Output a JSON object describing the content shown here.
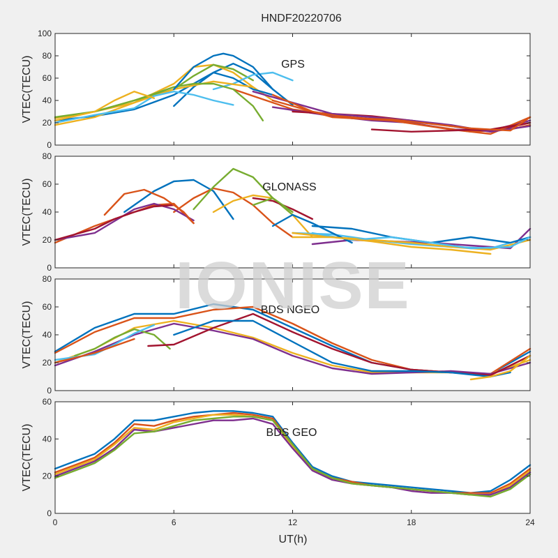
{
  "title": "HNDF20220706",
  "xlabel": "UT(h)",
  "watermark": "IONISE",
  "colors": [
    "#0072BD",
    "#D95319",
    "#EDB120",
    "#7E2F8E",
    "#77AC30",
    "#4DBEEE",
    "#A2142F"
  ],
  "chart_data": [
    {
      "type": "line",
      "label": "GPS",
      "ylabel": "VTEC(TECU)",
      "xlim": [
        0,
        24
      ],
      "ylim": [
        0,
        100
      ],
      "xticks": [
        0,
        6,
        12,
        18,
        24
      ],
      "yticks": [
        0,
        20,
        40,
        60,
        80,
        100
      ],
      "series": [
        {
          "x": [
            0,
            2,
            4,
            6,
            8,
            9,
            10,
            11,
            12
          ],
          "y": [
            22,
            26,
            32,
            45,
            65,
            73,
            65,
            50,
            36
          ]
        },
        {
          "x": [
            9,
            12,
            15,
            17,
            19,
            21,
            23,
            24
          ],
          "y": [
            50,
            32,
            25,
            22,
            17,
            12,
            14,
            18
          ]
        },
        {
          "x": [
            0,
            2,
            4,
            6,
            7,
            8,
            9,
            10,
            11
          ],
          "y": [
            24,
            30,
            38,
            55,
            70,
            72,
            65,
            52,
            40
          ]
        },
        {
          "x": [
            11,
            14,
            16,
            18,
            20,
            22,
            24
          ],
          "y": [
            34,
            26,
            22,
            20,
            14,
            13,
            22
          ]
        },
        {
          "x": [
            0,
            2,
            4,
            6,
            7,
            8,
            9,
            10
          ],
          "y": [
            25,
            30,
            40,
            50,
            62,
            72,
            68,
            58
          ]
        },
        {
          "x": [
            8,
            9,
            10,
            11,
            12
          ],
          "y": [
            50,
            55,
            63,
            65,
            58
          ]
        },
        {
          "x": [
            12,
            14,
            16,
            18,
            20,
            22,
            24
          ],
          "y": [
            30,
            28,
            26,
            22,
            17,
            12,
            20
          ]
        },
        {
          "x": [
            6,
            7,
            8,
            9,
            10,
            11
          ],
          "y": [
            35,
            52,
            65,
            60,
            50,
            45
          ]
        },
        {
          "x": [
            11,
            14,
            17,
            20,
            22,
            24
          ],
          "y": [
            40,
            25,
            22,
            14,
            10,
            25
          ]
        },
        {
          "x": [
            0,
            2,
            4,
            6,
            8,
            10
          ],
          "y": [
            18,
            25,
            38,
            50,
            57,
            52
          ]
        },
        {
          "x": [
            10,
            12,
            14,
            16,
            18,
            20,
            22,
            24
          ],
          "y": [
            48,
            38,
            28,
            25,
            22,
            18,
            12,
            17
          ]
        },
        {
          "x": [
            2,
            4,
            6,
            7,
            8,
            9,
            10,
            10.5
          ],
          "y": [
            30,
            40,
            52,
            55,
            55,
            50,
            35,
            22
          ]
        },
        {
          "x": [
            0,
            2,
            4,
            5,
            6,
            7,
            8,
            9
          ],
          "y": [
            20,
            27,
            33,
            44,
            48,
            45,
            40,
            36
          ]
        },
        {
          "x": [
            16,
            18,
            20,
            22,
            24
          ],
          "y": [
            14,
            12,
            13,
            14,
            20
          ]
        },
        {
          "x": [
            6,
            7,
            8,
            8.5,
            9,
            10,
            11
          ],
          "y": [
            50,
            70,
            80,
            82,
            80,
            70,
            50
          ]
        },
        {
          "x": [
            11,
            13,
            15,
            17,
            19,
            21,
            23,
            24
          ],
          "y": [
            45,
            30,
            24,
            23,
            19,
            15,
            13,
            25
          ]
        },
        {
          "x": [
            0,
            2,
            3,
            4,
            5
          ],
          "y": [
            22,
            30,
            40,
            48,
            42
          ]
        }
      ]
    },
    {
      "type": "line",
      "label": "GLONASS",
      "ylabel": "VTEC(TECU)",
      "xlim": [
        0,
        24
      ],
      "ylim": [
        0,
        80
      ],
      "xticks": [
        0,
        6,
        12,
        18,
        24
      ],
      "yticks": [
        0,
        20,
        40,
        60,
        80
      ],
      "series": [
        {
          "x": [
            3.5,
            5,
            6,
            7,
            8,
            9
          ],
          "y": [
            40,
            55,
            62,
            63,
            55,
            35
          ]
        },
        {
          "x": [
            6,
            7,
            8,
            9,
            10,
            11,
            12
          ],
          "y": [
            40,
            50,
            57,
            54,
            45,
            32,
            22
          ]
        },
        {
          "x": [
            8,
            9,
            10,
            11,
            12,
            13
          ],
          "y": [
            40,
            48,
            52,
            50,
            38,
            22
          ]
        },
        {
          "x": [
            13,
            15,
            17,
            19,
            21,
            23,
            24
          ],
          "y": [
            17,
            20,
            19,
            18,
            16,
            14,
            28
          ]
        },
        {
          "x": [
            7,
            8,
            9,
            10,
            11,
            12
          ],
          "y": [
            42,
            58,
            71,
            65,
            50,
            38
          ]
        },
        {
          "x": [
            12,
            14,
            16,
            18,
            20,
            22,
            24
          ],
          "y": [
            25,
            24,
            20,
            17,
            15,
            14,
            22
          ]
        },
        {
          "x": [
            10,
            11,
            12,
            13
          ],
          "y": [
            50,
            48,
            42,
            35
          ]
        },
        {
          "x": [
            13,
            15,
            17,
            19,
            21,
            23,
            24
          ],
          "y": [
            30,
            28,
            22,
            18,
            22,
            18,
            22
          ]
        },
        {
          "x": [
            0,
            2,
            4,
            5,
            6,
            7
          ],
          "y": [
            18,
            30,
            40,
            45,
            46,
            32
          ]
        },
        {
          "x": [
            12,
            14,
            16,
            18,
            20,
            22,
            24
          ],
          "y": [
            25,
            22,
            20,
            18,
            15,
            13,
            20
          ]
        },
        {
          "x": [
            0,
            2,
            4,
            5,
            6,
            7
          ],
          "y": [
            20,
            25,
            42,
            46,
            42,
            34
          ]
        },
        {
          "x": [
            10,
            11,
            12
          ],
          "y": [
            45,
            50,
            40
          ]
        },
        {
          "x": [
            13,
            15,
            17,
            19,
            21,
            23,
            24
          ],
          "y": [
            25,
            20,
            22,
            18,
            14,
            15,
            22
          ]
        },
        {
          "x": [
            0,
            2,
            3,
            4,
            5,
            6
          ],
          "y": [
            20,
            28,
            35,
            40,
            44,
            45
          ]
        },
        {
          "x": [
            11,
            12,
            13,
            14,
            15
          ],
          "y": [
            30,
            38,
            32,
            25,
            18
          ]
        },
        {
          "x": [
            2.5,
            3.5,
            4.5,
            5.5,
            6.5,
            7
          ],
          "y": [
            38,
            53,
            56,
            50,
            40,
            32
          ]
        },
        {
          "x": [
            12,
            14,
            16,
            18,
            20,
            22
          ],
          "y": [
            22,
            22,
            19,
            15,
            13,
            10
          ]
        }
      ]
    },
    {
      "type": "line",
      "label": "BDS NGEO",
      "ylabel": "VTEC(TECU)",
      "xlim": [
        0,
        24
      ],
      "ylim": [
        0,
        80
      ],
      "xticks": [
        0,
        6,
        12,
        18,
        24
      ],
      "yticks": [
        0,
        20,
        40,
        60,
        80
      ],
      "series": [
        {
          "x": [
            0,
            2,
            4,
            6,
            8,
            10,
            12,
            14,
            16,
            18,
            20,
            22,
            24
          ],
          "y": [
            28,
            45,
            55,
            55,
            62,
            58,
            45,
            32,
            20,
            15,
            13,
            12,
            28
          ]
        },
        {
          "x": [
            0,
            2,
            4,
            6,
            8,
            10,
            12,
            14,
            16,
            18,
            20,
            22,
            24
          ],
          "y": [
            27,
            42,
            52,
            52,
            58,
            60,
            48,
            34,
            22,
            15,
            13,
            12,
            30
          ]
        },
        {
          "x": [
            0,
            2,
            4,
            6,
            8,
            10,
            12,
            14,
            16,
            18,
            20,
            22,
            24
          ],
          "y": [
            20,
            30,
            45,
            50,
            45,
            38,
            27,
            18,
            13,
            13,
            13,
            12,
            22
          ]
        },
        {
          "x": [
            0,
            2,
            4,
            6,
            8,
            10,
            12,
            14,
            16,
            18,
            20,
            22,
            24
          ],
          "y": [
            18,
            28,
            40,
            48,
            43,
            37,
            25,
            16,
            12,
            13,
            14,
            12,
            20
          ]
        },
        {
          "x": [
            1,
            2,
            3,
            4,
            5,
            5.8
          ],
          "y": [
            25,
            30,
            38,
            44,
            40,
            30
          ]
        },
        {
          "x": [
            0,
            2,
            3,
            4,
            5
          ],
          "y": [
            22,
            26,
            33,
            41,
            47
          ]
        },
        {
          "x": [
            4.7,
            6,
            8,
            10,
            12,
            14,
            16,
            18,
            20,
            22,
            24
          ],
          "y": [
            32,
            33,
            45,
            55,
            42,
            30,
            20,
            15,
            13,
            11,
            25
          ]
        },
        {
          "x": [
            6,
            8,
            10,
            12,
            14,
            16,
            18,
            20,
            22,
            23
          ],
          "y": [
            40,
            50,
            50,
            35,
            20,
            14,
            14,
            13,
            10,
            13
          ]
        },
        {
          "x": [
            0,
            2,
            4
          ],
          "y": [
            20,
            27,
            37
          ]
        },
        {
          "x": [
            21,
            22,
            23,
            24
          ],
          "y": [
            8,
            10,
            14,
            25
          ]
        }
      ]
    },
    {
      "type": "line",
      "label": "BDS GEO",
      "ylabel": "VTEC(TECU)",
      "xlim": [
        0,
        24
      ],
      "ylim": [
        0,
        60
      ],
      "xticks": [
        0,
        6,
        12,
        18,
        24
      ],
      "yticks": [
        0,
        20,
        40,
        60
      ],
      "series": [
        {
          "x": [
            0,
            1,
            2,
            3,
            4,
            5,
            6,
            7,
            8,
            9,
            10,
            11,
            12,
            13,
            14,
            15,
            16,
            17,
            18,
            19,
            20,
            21,
            22,
            23,
            24
          ],
          "y": [
            24,
            28,
            32,
            40,
            50,
            50,
            52,
            54,
            55,
            55,
            54,
            52,
            38,
            25,
            20,
            17,
            16,
            15,
            14,
            13,
            12,
            11,
            12,
            18,
            26
          ]
        },
        {
          "x": [
            0,
            1,
            2,
            3,
            4,
            5,
            6,
            7,
            8,
            9,
            10,
            11,
            12,
            13,
            14,
            15,
            16,
            17,
            18,
            19,
            20,
            21,
            22,
            23,
            24
          ],
          "y": [
            22,
            26,
            30,
            38,
            48,
            47,
            50,
            52,
            53,
            54,
            53,
            51,
            37,
            24,
            19,
            17,
            15,
            14,
            13,
            12,
            11,
            11,
            11,
            16,
            24
          ]
        },
        {
          "x": [
            0,
            1,
            2,
            3,
            4,
            5,
            6,
            7,
            8,
            9,
            10,
            11,
            12,
            13,
            14,
            15,
            16,
            17,
            18,
            19,
            20,
            21,
            22,
            23,
            24
          ],
          "y": [
            21,
            25,
            29,
            37,
            46,
            45,
            49,
            51,
            53,
            53,
            52,
            50,
            36,
            24,
            19,
            16,
            15,
            14,
            13,
            12,
            11,
            10,
            10,
            15,
            23
          ]
        },
        {
          "x": [
            0,
            1,
            2,
            3,
            4,
            5,
            6,
            7,
            8,
            9,
            10,
            11,
            12,
            13,
            14,
            15,
            16,
            17,
            18,
            19,
            20,
            21,
            22,
            23,
            24
          ],
          "y": [
            20,
            24,
            28,
            35,
            45,
            44,
            46,
            48,
            50,
            50,
            51,
            48,
            35,
            23,
            18,
            16,
            15,
            14,
            12,
            11,
            11,
            10,
            10,
            14,
            22
          ]
        },
        {
          "x": [
            0,
            1,
            2,
            3,
            4,
            5,
            6,
            7,
            8,
            9,
            10,
            11,
            12,
            13,
            14,
            15,
            16,
            17,
            18,
            19,
            20,
            21,
            22,
            23,
            24
          ],
          "y": [
            19,
            23,
            27,
            34,
            43,
            44,
            47,
            50,
            51,
            52,
            52,
            50,
            37,
            24,
            19,
            16,
            15,
            14,
            13,
            12,
            11,
            10,
            9,
            13,
            21
          ]
        }
      ]
    }
  ]
}
